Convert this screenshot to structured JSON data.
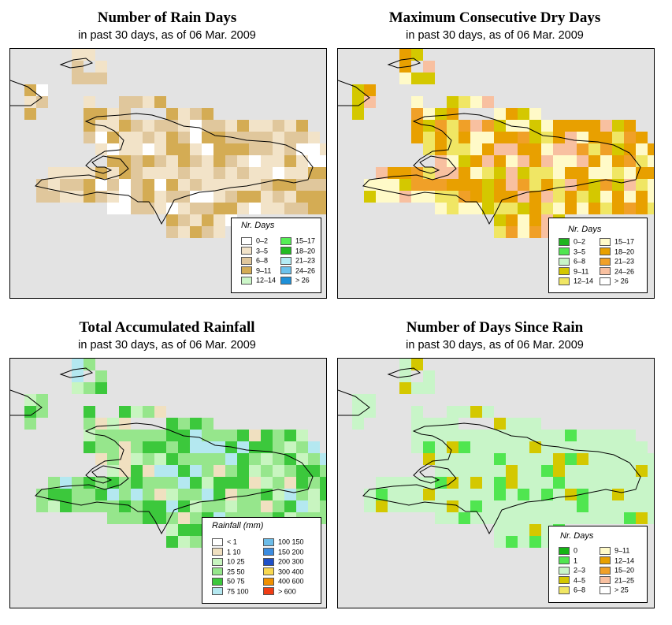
{
  "panels": [
    {
      "title": "Number of Rain Days",
      "subtitle": "in past 30 days, as of  06 Mar. 2009",
      "legend": {
        "title": "Nr. Days",
        "items": [
          {
            "label": "0–2",
            "color": "#ffffff"
          },
          {
            "label": "3–5",
            "color": "#f2e3c8"
          },
          {
            "label": "6–8",
            "color": "#e0c79c"
          },
          {
            "label": "9–11",
            "color": "#d4ac54"
          },
          {
            "label": "12–14",
            "color": "#ccf6c8"
          },
          {
            "label": "15–17",
            "color": "#55ee55"
          },
          {
            "label": "18–20",
            "color": "#22bb22"
          },
          {
            "label": "21–23",
            "color": "#b4ecf4"
          },
          {
            "label": "24–26",
            "color": "#6cc2ec"
          },
          {
            "label": "> 26",
            "color": "#1e90d8"
          }
        ]
      }
    },
    {
      "title": "Maximum Consecutive Dry Days",
      "subtitle": "in past 30 days, as of  06 Mar. 2009",
      "legend": {
        "title": "Nr. Days",
        "items": [
          {
            "label": "0–2",
            "color": "#1eb41e"
          },
          {
            "label": "3–5",
            "color": "#50e650"
          },
          {
            "label": "6–8",
            "color": "#c8f5c8"
          },
          {
            "label": "9–11",
            "color": "#d4c800"
          },
          {
            "label": "12–14",
            "color": "#f0e664"
          },
          {
            "label": "15–17",
            "color": "#fffac8"
          },
          {
            "label": "18–20",
            "color": "#e8a000"
          },
          {
            "label": "21–23",
            "color": "#f0a028"
          },
          {
            "label": "24–26",
            "color": "#f8c0a0"
          },
          {
            "label": "> 26",
            "color": "#ffffff"
          }
        ]
      }
    },
    {
      "title": "Total Accumulated Rainfall",
      "subtitle": "in past 30 days, as of  06 Mar. 2009",
      "legend": {
        "title": "Rainfall (mm)",
        "items": [
          {
            "label": "< 1",
            "color": "#ffffff"
          },
          {
            "label": "1    10",
            "color": "#f0e0c0"
          },
          {
            "label": "10    25",
            "color": "#c8f5c0"
          },
          {
            "label": "25    50",
            "color": "#96e68c"
          },
          {
            "label": "50    75",
            "color": "#3cc83c"
          },
          {
            "label": "75  100",
            "color": "#b4e8f0"
          },
          {
            "label": "100  150",
            "color": "#6cbce8"
          },
          {
            "label": "150  200",
            "color": "#3c8ce0"
          },
          {
            "label": "200  300",
            "color": "#1e50c8"
          },
          {
            "label": "300  400",
            "color": "#f8d850"
          },
          {
            "label": "400  600",
            "color": "#f09000"
          },
          {
            "label": "> 600",
            "color": "#f03c14"
          }
        ]
      }
    },
    {
      "title": "Number of Days Since Rain",
      "subtitle": "in past 30 days, as of  06 Mar. 2009",
      "legend": {
        "title": "Nr. Days",
        "items": [
          {
            "label": "0",
            "color": "#14b414"
          },
          {
            "label": "1",
            "color": "#50e650"
          },
          {
            "label": "2–3",
            "color": "#c8f5c8"
          },
          {
            "label": "4–5",
            "color": "#d4c800"
          },
          {
            "label": "6–8",
            "color": "#f0e664"
          },
          {
            "label": "9–11",
            "color": "#fffac8"
          },
          {
            "label": "12–14",
            "color": "#e8a000"
          },
          {
            "label": "15–20",
            "color": "#f0a028"
          },
          {
            "label": "21–25",
            "color": "#f8c0a0"
          },
          {
            "label": "> 25",
            "color": "#ffffff"
          }
        ]
      }
    }
  ]
}
